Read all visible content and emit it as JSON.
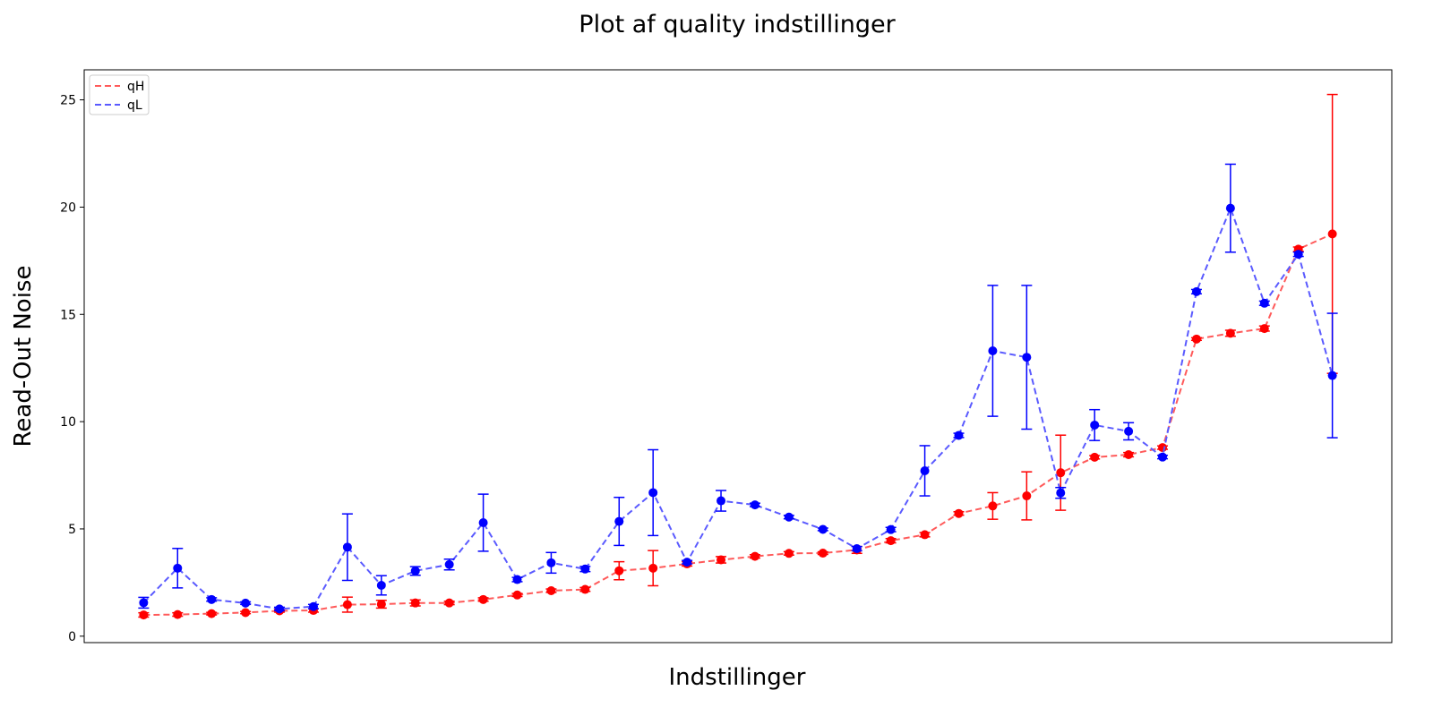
{
  "chart_data": {
    "type": "line",
    "title": "Plot af quality indstillinger",
    "xlabel": "Indstillinger",
    "ylabel": "Read-Out Noise",
    "ylim": [
      -0.3,
      26.4
    ],
    "yticks": [
      0,
      5,
      10,
      15,
      20,
      25
    ],
    "x": [
      1,
      2,
      3,
      4,
      5,
      6,
      7,
      8,
      9,
      10,
      11,
      12,
      13,
      14,
      15,
      16,
      17,
      18,
      19,
      20,
      21,
      22,
      23,
      24,
      25,
      26,
      27,
      28,
      29,
      30,
      31,
      32,
      33,
      34,
      35,
      36
    ],
    "xlim": [
      -0.75,
      37.75
    ],
    "grid": false,
    "legend_position": "top-left",
    "series": [
      {
        "name": "qH",
        "color": "#ff0000",
        "line_color": "#ff5a5a",
        "values": [
          0.99,
          1.01,
          1.05,
          1.1,
          1.18,
          1.2,
          1.47,
          1.49,
          1.55,
          1.55,
          1.71,
          1.92,
          2.12,
          2.18,
          3.05,
          3.17,
          3.37,
          3.56,
          3.72,
          3.86,
          3.87,
          4.02,
          4.45,
          4.73,
          5.72,
          6.07,
          6.54,
          7.62,
          8.34,
          8.46,
          8.79,
          13.85,
          14.12,
          14.34,
          18.04,
          18.75
        ],
        "errors": [
          0.1,
          0.08,
          0.06,
          0.05,
          0.06,
          0.08,
          0.35,
          0.18,
          0.14,
          0.08,
          0.08,
          0.07,
          0.08,
          0.09,
          0.42,
          0.82,
          0.1,
          0.15,
          0.08,
          0.08,
          0.06,
          0.16,
          0.1,
          0.1,
          0.08,
          0.62,
          1.12,
          1.75,
          0.08,
          0.1,
          0.08,
          0.06,
          0.14,
          0.12,
          0.1,
          6.5
        ]
      },
      {
        "name": "qL",
        "color": "#0000ff",
        "line_color": "#5a5aff",
        "values": [
          1.56,
          3.17,
          1.71,
          1.54,
          1.27,
          1.38,
          4.15,
          2.37,
          3.04,
          3.34,
          5.29,
          2.64,
          3.42,
          3.13,
          5.35,
          6.69,
          3.45,
          6.31,
          6.12,
          5.55,
          4.98,
          4.08,
          4.97,
          7.71,
          9.36,
          13.3,
          13.0,
          6.68,
          9.84,
          9.55,
          8.35,
          16.06,
          19.95,
          15.52,
          17.8,
          12.15
        ],
        "errors": [
          0.25,
          0.92,
          0.08,
          0.06,
          0.08,
          0.1,
          1.55,
          0.45,
          0.2,
          0.25,
          1.33,
          0.1,
          0.48,
          0.12,
          1.12,
          2.0,
          0.08,
          0.48,
          0.08,
          0.08,
          0.06,
          0.1,
          0.1,
          1.17,
          0.1,
          3.05,
          3.35,
          0.25,
          0.72,
          0.4,
          0.08,
          0.1,
          2.05,
          0.1,
          0.1,
          2.9
        ]
      }
    ]
  }
}
